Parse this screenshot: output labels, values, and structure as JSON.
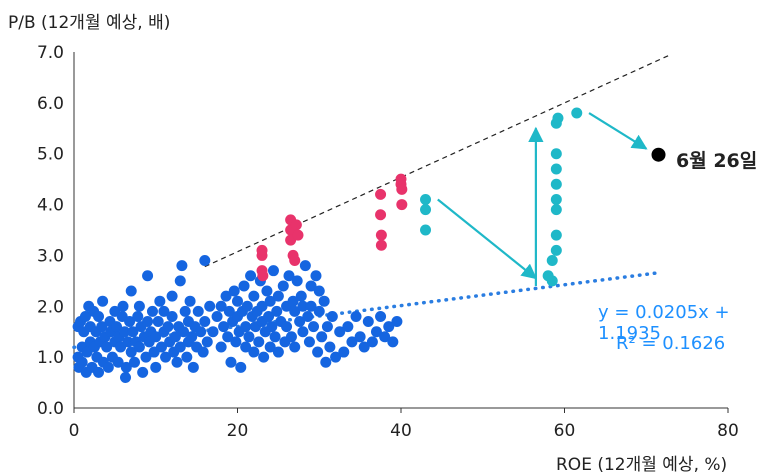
{
  "chart_data": {
    "type": "scatter",
    "ylabel": "P/B (12개월 예상, 배)",
    "xlabel": "ROE (12개월 예상, %)",
    "xlim": [
      0,
      80
    ],
    "ylim": [
      0,
      7
    ],
    "xticks": [
      "0",
      "20",
      "40",
      "60",
      "80"
    ],
    "yticks": [
      "0.0",
      "1.0",
      "2.0",
      "3.0",
      "4.0",
      "5.0",
      "6.0",
      "7.0"
    ],
    "colors": {
      "blue": "#1565e0",
      "pink": "#e8336b",
      "teal": "#1fb8c8",
      "trend": "#2a7de1",
      "arrow": "#1fb8c8",
      "upper_line": "#222222"
    },
    "series": [
      {
        "color_key": "blue",
        "note": "historical cloud",
        "points": [
          [
            0.5,
            1.6
          ],
          [
            0.5,
            1.0
          ],
          [
            0.6,
            0.8
          ],
          [
            0.8,
            1.7
          ],
          [
            1,
            1.2
          ],
          [
            1,
            0.9
          ],
          [
            1.2,
            1.5
          ],
          [
            1.4,
            1.8
          ],
          [
            1.5,
            0.7
          ],
          [
            1.6,
            1.1
          ],
          [
            1.8,
            2.0
          ],
          [
            2,
            1.3
          ],
          [
            2,
            1.6
          ],
          [
            2.2,
            0.8
          ],
          [
            2.4,
            1.9
          ],
          [
            2.5,
            1.2
          ],
          [
            2.7,
            1.5
          ],
          [
            2.8,
            1.0
          ],
          [
            3,
            0.7
          ],
          [
            3,
            1.8
          ],
          [
            3.2,
            1.3
          ],
          [
            3.4,
            1.6
          ],
          [
            3.5,
            2.1
          ],
          [
            3.6,
            0.9
          ],
          [
            3.8,
            1.4
          ],
          [
            4,
            1.2
          ],
          [
            4.2,
            0.8
          ],
          [
            4.4,
            1.7
          ],
          [
            4.5,
            1.5
          ],
          [
            4.7,
            1.0
          ],
          [
            5,
            1.3
          ],
          [
            5,
            1.9
          ],
          [
            5.2,
            1.6
          ],
          [
            5.4,
            0.9
          ],
          [
            5.5,
            1.4
          ],
          [
            5.7,
            1.2
          ],
          [
            5.9,
            1.8
          ],
          [
            6,
            2.0
          ],
          [
            6.2,
            1.5
          ],
          [
            6.3,
            0.6
          ],
          [
            6.4,
            0.8
          ],
          [
            6.6,
            1.3
          ],
          [
            6.8,
            1.7
          ],
          [
            7,
            2.3
          ],
          [
            7,
            1.1
          ],
          [
            7.2,
            1.5
          ],
          [
            7.4,
            0.9
          ],
          [
            7.6,
            1.3
          ],
          [
            7.8,
            1.8
          ],
          [
            8,
            1.2
          ],
          [
            8,
            2.0
          ],
          [
            8.2,
            1.6
          ],
          [
            8.4,
            0.7
          ],
          [
            8.6,
            1.4
          ],
          [
            8.8,
            1.0
          ],
          [
            9,
            1.7
          ],
          [
            9,
            2.6
          ],
          [
            9.2,
            1.3
          ],
          [
            9.4,
            1.5
          ],
          [
            9.6,
            1.9
          ],
          [
            9.8,
            1.1
          ],
          [
            10,
            1.4
          ],
          [
            10,
            0.8
          ],
          [
            10.3,
            1.7
          ],
          [
            10.5,
            2.1
          ],
          [
            10.7,
            1.2
          ],
          [
            11,
            1.5
          ],
          [
            11,
            1.9
          ],
          [
            11.2,
            1.0
          ],
          [
            11.5,
            1.6
          ],
          [
            11.7,
            1.3
          ],
          [
            12,
            1.8
          ],
          [
            12,
            2.2
          ],
          [
            12.2,
            1.1
          ],
          [
            12.4,
            1.4
          ],
          [
            12.6,
            0.9
          ],
          [
            12.8,
            1.6
          ],
          [
            13,
            2.5
          ],
          [
            13,
            1.2
          ],
          [
            13.2,
            2.8
          ],
          [
            13.4,
            1.5
          ],
          [
            13.6,
            1.9
          ],
          [
            13.8,
            1.0
          ],
          [
            14,
            1.3
          ],
          [
            14,
            1.7
          ],
          [
            14.2,
            2.1
          ],
          [
            14.4,
            1.4
          ],
          [
            14.6,
            0.8
          ],
          [
            14.8,
            1.6
          ],
          [
            15,
            1.2
          ],
          [
            15.2,
            1.9
          ],
          [
            15.5,
            1.5
          ],
          [
            15.8,
            1.1
          ],
          [
            16,
            1.7
          ],
          [
            16,
            2.9
          ],
          [
            16.3,
            1.3
          ],
          [
            16.6,
            2.0
          ],
          [
            17,
            1.5
          ],
          [
            17.5,
            1.8
          ],
          [
            18,
            1.2
          ],
          [
            18,
            2.0
          ],
          [
            18.3,
            1.6
          ],
          [
            18.6,
            2.2
          ],
          [
            18.8,
            1.4
          ],
          [
            19,
            1.9
          ],
          [
            19.2,
            0.9
          ],
          [
            19.4,
            1.7
          ],
          [
            19.6,
            2.3
          ],
          [
            19.8,
            1.3
          ],
          [
            20,
            1.8
          ],
          [
            20,
            2.1
          ],
          [
            20.2,
            1.5
          ],
          [
            20.4,
            0.8
          ],
          [
            20.6,
            1.9
          ],
          [
            20.8,
            2.4
          ],
          [
            21,
            1.6
          ],
          [
            21,
            1.2
          ],
          [
            21.2,
            2.0
          ],
          [
            21.4,
            1.4
          ],
          [
            21.6,
            2.6
          ],
          [
            21.8,
            1.8
          ],
          [
            22,
            1.1
          ],
          [
            22,
            2.2
          ],
          [
            22.2,
            1.6
          ],
          [
            22.4,
            1.9
          ],
          [
            22.6,
            1.3
          ],
          [
            22.8,
            2.5
          ],
          [
            23,
            1.7
          ],
          [
            23,
            2.0
          ],
          [
            23.2,
            1.0
          ],
          [
            23.4,
            1.5
          ],
          [
            23.6,
            2.3
          ],
          [
            23.8,
            1.8
          ],
          [
            24,
            1.2
          ],
          [
            24,
            2.1
          ],
          [
            24.2,
            1.6
          ],
          [
            24.4,
            2.7
          ],
          [
            24.6,
            1.4
          ],
          [
            24.8,
            1.9
          ],
          [
            25,
            1.1
          ],
          [
            25,
            2.2
          ],
          [
            25.3,
            1.7
          ],
          [
            25.6,
            2.4
          ],
          [
            25.8,
            1.3
          ],
          [
            26,
            2.0
          ],
          [
            26,
            1.6
          ],
          [
            26.3,
            2.6
          ],
          [
            26.6,
            1.4
          ],
          [
            26.8,
            2.1
          ],
          [
            27,
            1.9
          ],
          [
            27,
            1.2
          ],
          [
            27.3,
            2.5
          ],
          [
            27.6,
            1.7
          ],
          [
            27.8,
            2.2
          ],
          [
            28,
            1.5
          ],
          [
            28,
            2.0
          ],
          [
            28.3,
            2.8
          ],
          [
            28.6,
            1.8
          ],
          [
            28.8,
            1.3
          ],
          [
            29,
            2.4
          ],
          [
            29,
            2.0
          ],
          [
            29.3,
            1.6
          ],
          [
            29.6,
            2.6
          ],
          [
            29.8,
            1.1
          ],
          [
            30,
            1.9
          ],
          [
            30,
            2.3
          ],
          [
            30.3,
            1.4
          ],
          [
            30.6,
            2.1
          ],
          [
            30.8,
            0.9
          ],
          [
            31,
            1.6
          ],
          [
            31.3,
            1.2
          ],
          [
            31.6,
            1.8
          ],
          [
            32,
            1.0
          ],
          [
            32.5,
            1.5
          ],
          [
            33,
            1.1
          ],
          [
            33.5,
            1.6
          ],
          [
            34,
            1.3
          ],
          [
            34.5,
            1.8
          ],
          [
            35,
            1.4
          ],
          [
            35.5,
            1.2
          ],
          [
            36,
            1.7
          ],
          [
            36.5,
            1.3
          ],
          [
            37,
            1.5
          ],
          [
            37.5,
            1.8
          ],
          [
            38,
            1.4
          ],
          [
            38.5,
            1.6
          ],
          [
            39,
            1.3
          ],
          [
            39.5,
            1.7
          ]
        ]
      },
      {
        "color_key": "pink",
        "note": "highlighted",
        "points": [
          [
            23,
            3.0
          ],
          [
            23,
            3.1
          ],
          [
            23,
            2.7
          ],
          [
            23.1,
            2.6
          ],
          [
            26.5,
            3.7
          ],
          [
            26.5,
            3.5
          ],
          [
            26.5,
            3.3
          ],
          [
            26.8,
            3.0
          ],
          [
            27,
            2.9
          ],
          [
            27.2,
            3.6
          ],
          [
            27.4,
            3.4
          ],
          [
            37.5,
            4.2
          ],
          [
            37.5,
            3.8
          ],
          [
            37.6,
            3.4
          ],
          [
            37.6,
            3.2
          ],
          [
            40,
            4.5
          ],
          [
            40,
            4.4
          ],
          [
            40.1,
            4.3
          ],
          [
            40.1,
            4.0
          ]
        ]
      },
      {
        "color_key": "teal",
        "note": "recent",
        "points": [
          [
            43,
            4.1
          ],
          [
            43,
            3.9
          ],
          [
            43,
            3.5
          ],
          [
            58,
            2.6
          ],
          [
            58.5,
            2.5
          ],
          [
            58.5,
            2.9
          ],
          [
            59,
            3.1
          ],
          [
            59,
            3.4
          ],
          [
            59,
            3.9
          ],
          [
            59,
            4.1
          ],
          [
            59,
            4.4
          ],
          [
            59,
            4.7
          ],
          [
            59,
            5.0
          ],
          [
            59,
            5.6
          ],
          [
            59.2,
            5.7
          ],
          [
            61.5,
            5.8
          ]
        ]
      }
    ],
    "highlight_point": {
      "x": 71.5,
      "y": 4.98,
      "label": "6월 26일"
    },
    "trendline": {
      "slope": 0.0205,
      "intercept": 1.1935,
      "x_range": [
        0,
        71.5
      ],
      "equation": "y = 0.0205x + 1.1935",
      "r2": "R² = 0.1626"
    },
    "upper_line": {
      "points": [
        [
          16,
          2.78
        ],
        [
          73,
          6.95
        ]
      ]
    },
    "arrows": [
      {
        "from": [
          44.5,
          4.1
        ],
        "to": [
          56.5,
          2.55
        ]
      },
      {
        "from": [
          56.5,
          2.4
        ],
        "to": [
          56.5,
          5.5
        ]
      },
      {
        "from": [
          63,
          5.8
        ],
        "to": [
          70,
          5.1
        ]
      }
    ]
  }
}
